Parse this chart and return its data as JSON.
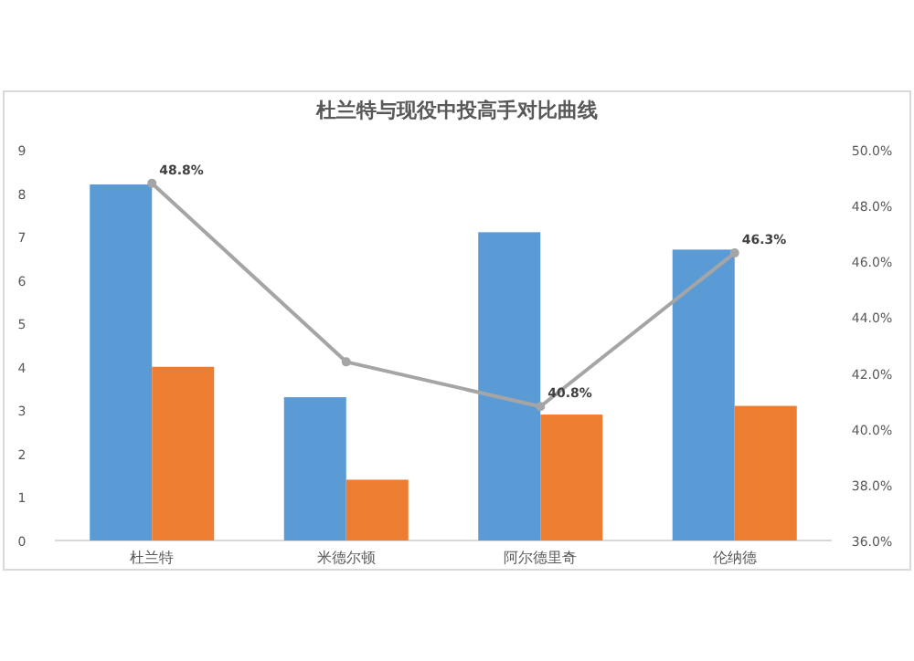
{
  "chart_data": {
    "type": "bar",
    "title": "杜兰特与现役中投高手对比曲线",
    "categories": [
      "杜兰特",
      "米德尔顿",
      "阿尔德里奇",
      "伦纳德"
    ],
    "series": [
      {
        "color": "#5b9bd5",
        "values": [
          8.2,
          3.3,
          7.1,
          6.7
        ]
      },
      {
        "color": "#ed7d31",
        "values": [
          4.0,
          1.4,
          2.9,
          3.1
        ]
      },
      {
        "type": "line",
        "axis": "y2",
        "color": "#a5a5a5",
        "marker": "circle",
        "values": [
          48.8,
          42.4,
          40.8,
          46.3
        ],
        "value_labels": [
          "48.8%",
          null,
          "40.8%",
          "46.3%"
        ]
      }
    ],
    "ylim": [
      0,
      9
    ],
    "yticks": [
      0,
      1,
      2,
      3,
      4,
      5,
      6,
      7,
      8,
      9
    ],
    "y2lim": [
      36,
      50
    ],
    "y2ticks": [
      {
        "value": 36,
        "label": "36.0%"
      },
      {
        "value": 38,
        "label": "38.0%"
      },
      {
        "value": 40,
        "label": "40.0%"
      },
      {
        "value": 42,
        "label": "42.0%"
      },
      {
        "value": 44,
        "label": "44.0%"
      },
      {
        "value": 46,
        "label": "46.0%"
      },
      {
        "value": 48,
        "label": "48.0%"
      },
      {
        "value": 50,
        "label": "50.0%"
      }
    ]
  }
}
